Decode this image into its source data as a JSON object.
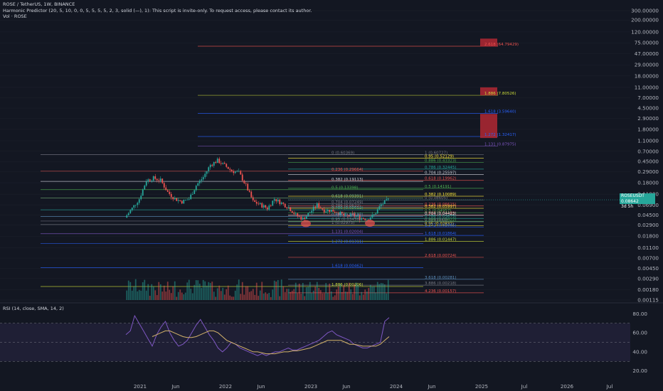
{
  "header": {
    "title": "ROSE / TetherUS, 1W, BINANCE",
    "indicator": "Harmonic Predictor (20, 5, 10, 0, 0, 5, 5, 5, 5, 2, 3, solid (—), 1): This script is invite-only. To request access, please contact its author.",
    "volume": "Vol · ROSE"
  },
  "price_tag": {
    "symbol": "ROSEUSDT",
    "value": "0.08642",
    "countdown": "3d 5h"
  },
  "rsi_label": "RSI (14, close, SMA, 14, 2)",
  "colors": {
    "background": "#131722",
    "up": "#26a69a",
    "down": "#ef5350",
    "rsi": "#7e57c2",
    "rsi_ma": "#d4b36a",
    "grid": "#1e222d"
  },
  "chart_data": [
    {
      "type": "candlestick",
      "scale": "log",
      "y_ticks": [
        "300.00000",
        "200.00000",
        "120.00000",
        "75.00000",
        "47.00000",
        "29.00000",
        "18.00000",
        "11.00000",
        "7.00000",
        "4.50000",
        "2.90000",
        "1.80000",
        "1.10000",
        "0.70000",
        "0.45000",
        "0.29000",
        "0.18000",
        "0.11000",
        "0.06900",
        "0.04500",
        "0.02900",
        "0.01800",
        "0.01100",
        "0.00700",
        "0.00450",
        "0.00290",
        "0.00180",
        "0.00115"
      ],
      "x_ticks": [
        "2021",
        "Jun",
        "2022",
        "Jun",
        "2023",
        "Jun",
        "2024",
        "Jun",
        "2025",
        "Jul",
        "2026",
        "Jul"
      ],
      "last_price": 0.08642,
      "price_path": [
        [
          "2020-11",
          0.04
        ],
        [
          "2020-12",
          0.06
        ],
        [
          "2021-01",
          0.09
        ],
        [
          "2021-02",
          0.2
        ],
        [
          "2021-03",
          0.22
        ],
        [
          "2021-04",
          0.2
        ],
        [
          "2021-05",
          0.12
        ],
        [
          "2021-06",
          0.09
        ],
        [
          "2021-07",
          0.08
        ],
        [
          "2021-08",
          0.09
        ],
        [
          "2021-09",
          0.16
        ],
        [
          "2021-10",
          0.23
        ],
        [
          "2021-11",
          0.39
        ],
        [
          "2021-12",
          0.47
        ],
        [
          "2022-01",
          0.38
        ],
        [
          "2022-02",
          0.3
        ],
        [
          "2022-03",
          0.28
        ],
        [
          "2022-04",
          0.16
        ],
        [
          "2022-05",
          0.08
        ],
        [
          "2022-06",
          0.07
        ],
        [
          "2022-07",
          0.06
        ],
        [
          "2022-08",
          0.09
        ],
        [
          "2022-09",
          0.075
        ],
        [
          "2022-10",
          0.062
        ],
        [
          "2022-11",
          0.045
        ],
        [
          "2022-12",
          0.038
        ],
        [
          "2023-01",
          0.05
        ],
        [
          "2023-02",
          0.07
        ],
        [
          "2023-03",
          0.055
        ],
        [
          "2023-04",
          0.055
        ],
        [
          "2023-05",
          0.05
        ],
        [
          "2023-06",
          0.042
        ],
        [
          "2023-07",
          0.045
        ],
        [
          "2023-08",
          0.04
        ],
        [
          "2023-09",
          0.038
        ],
        [
          "2023-10",
          0.045
        ],
        [
          "2023-11",
          0.07
        ],
        [
          "2023-12",
          0.086
        ]
      ],
      "fib_levels_left": [
        {
          "label": "0 (0.60369)",
          "price": 0.60369,
          "color": "#787b86"
        },
        {
          "label": "0.236 (0.29664)",
          "price": 0.29664,
          "color": "#ef5350"
        },
        {
          "label": "0.382 (0.19113)",
          "price": 0.19113,
          "color": "#d1d4dc"
        },
        {
          "label": "0.5 (0.13398)",
          "price": 0.13398,
          "color": "#4caf50"
        },
        {
          "label": "0.618 (0.09391)",
          "price": 0.09391,
          "color": "#81c784"
        },
        {
          "label": "0.786 (0.05612)",
          "price": 0.05612,
          "color": "#26a69a"
        },
        {
          "label": "0.886 (0.04193)",
          "price": 0.04193,
          "color": "#5d8fbd"
        },
        {
          "label": "0.95 (0.03456)",
          "price": 0.03456,
          "color": "#787b86"
        },
        {
          "label": "1 (0.02973)",
          "price": 0.02973,
          "color": "#787b86"
        },
        {
          "label": "1.131 (0.02004)",
          "price": 0.02004,
          "color": "#7e57c2"
        },
        {
          "label": "1.272 (0.01311)",
          "price": 0.01311,
          "color": "#2962ff"
        },
        {
          "label": "1.618 (0.00462)",
          "price": 0.00462,
          "color": "#2962ff"
        },
        {
          "label": "1.886 (0.00206)",
          "price": 0.00206,
          "color": "#cddc39"
        }
      ],
      "fib_levels_mid": [
        {
          "label": "0.704 (0.07249)",
          "price": 0.07249,
          "color": "#787b86"
        },
        {
          "label": "0.786 (0.0622)",
          "price": 0.0622,
          "color": "#787b86"
        }
      ],
      "fib_levels_right": [
        {
          "label": "1 (0.60727)",
          "price": 0.60727,
          "color": "#787b86"
        },
        {
          "label": "0.95 (0.52129)",
          "price": 0.52129,
          "color": "#ffeb3b"
        },
        {
          "label": "0.886 (0.43323)",
          "price": 0.43323,
          "color": "#4caf50"
        },
        {
          "label": "0.786 (0.32445)",
          "price": 0.32445,
          "color": "#26a69a"
        },
        {
          "label": "0.704 (0.25597)",
          "price": 0.25597,
          "color": "#d1d4dc"
        },
        {
          "label": "0.618 (0.19962)",
          "price": 0.19962,
          "color": "#ef5350"
        },
        {
          "label": "0.5 (0.14191)",
          "price": 0.14191,
          "color": "#4caf50"
        },
        {
          "label": "0.382 (0.10089)",
          "price": 0.10089,
          "color": "#ffeb3b"
        },
        {
          "label": "0.236 (0.06615)",
          "price": 0.06615,
          "color": "#ef5350"
        },
        {
          "label": "0 (0.08605)",
          "price": 0.08605,
          "color": "#787b86"
        },
        {
          "label": "0.382 (0.05997)",
          "price": 0.05997,
          "color": "#ffeb3b"
        },
        {
          "label": "0.5 (0.04957)",
          "price": 0.04957,
          "color": "#4caf50"
        },
        {
          "label": "0.618 (0.04469)",
          "price": 0.04469,
          "color": "#ef5350"
        },
        {
          "label": "0.704 (0.04423)",
          "price": 0.04423,
          "color": "#d1d4dc"
        },
        {
          "label": "0.786 (0.03875)",
          "price": 0.03875,
          "color": "#26a69a"
        },
        {
          "label": "0.886 (0.03422)",
          "price": 0.03422,
          "color": "#4caf50"
        },
        {
          "label": "0.95 (0.02831)",
          "price": 0.02831,
          "color": "#ffeb3b"
        },
        {
          "label": "0 (0.03343)",
          "price": 0.03343,
          "color": "#787b86"
        },
        {
          "label": "1.272 (0.02665)",
          "price": 0.02665,
          "color": "#2962ff"
        },
        {
          "label": "1.618 (0.01864)",
          "price": 0.01864,
          "color": "#2962ff"
        },
        {
          "label": "1.886 (0.01447)",
          "price": 0.01447,
          "color": "#cddc39"
        },
        {
          "label": "2.618 (0.00724)",
          "price": 0.00724,
          "color": "#ef5350"
        },
        {
          "label": "3.618 (0.00281)",
          "price": 0.00281,
          "color": "#5d8fbd"
        },
        {
          "label": "3.886 (0.00218)",
          "price": 0.00218,
          "color": "#787b86"
        },
        {
          "label": "4.236 (0.00157)",
          "price": 0.00157,
          "color": "#ef5350"
        }
      ],
      "fib_levels_upper": [
        {
          "label": "2.618 (64.79429)",
          "price": 64.79429,
          "color": "#ef5350"
        },
        {
          "label": "1.886 (7.80526)",
          "price": 7.80526,
          "color": "#cddc39"
        },
        {
          "label": "1.618 (3.59640)",
          "price": 3.5964,
          "color": "#2962ff"
        },
        {
          "label": "1.272 (1.32417)",
          "price": 1.32417,
          "color": "#2962ff"
        },
        {
          "label": "1.131 (0.87975)",
          "price": 0.87975,
          "color": "#7e57c2"
        }
      ],
      "target_boxes": [
        {
          "top": 90,
          "bottom": 64
        },
        {
          "top": 11,
          "bottom": 7.8
        },
        {
          "top": 3.5,
          "bottom": 1.24
        }
      ]
    },
    {
      "type": "line",
      "title": "RSI (14, close, SMA, 14, 2)",
      "y_ticks": [
        "80.00",
        "60.00",
        "40.00",
        "20.00"
      ],
      "ylim": [
        10,
        90
      ],
      "band": [
        30,
        70
      ],
      "series": [
        {
          "values": [
            58,
            62,
            78,
            70,
            62,
            54,
            46,
            58,
            66,
            72,
            60,
            52,
            46,
            48,
            52,
            60,
            68,
            74,
            66,
            58,
            52,
            44,
            40,
            44,
            50,
            48,
            44,
            42,
            40,
            38,
            36,
            38,
            36,
            38,
            40,
            40,
            42,
            44,
            42,
            42,
            44,
            46,
            48,
            50,
            52,
            56,
            60,
            62,
            58,
            56,
            54,
            52,
            48,
            46,
            44,
            44,
            46,
            48,
            50,
            72,
            76
          ]
        },
        {
          "values": [
            null,
            null,
            null,
            null,
            null,
            null,
            56,
            58,
            60,
            62,
            62,
            60,
            58,
            56,
            55,
            55,
            56,
            58,
            60,
            62,
            62,
            60,
            56,
            52,
            50,
            48,
            46,
            44,
            42,
            40,
            40,
            39,
            38,
            38,
            38,
            39,
            40,
            40,
            41,
            41,
            42,
            43,
            44,
            46,
            48,
            50,
            52,
            52,
            52,
            52,
            50,
            48,
            48,
            47,
            46,
            46,
            46,
            46,
            48,
            52,
            56
          ]
        }
      ]
    }
  ]
}
